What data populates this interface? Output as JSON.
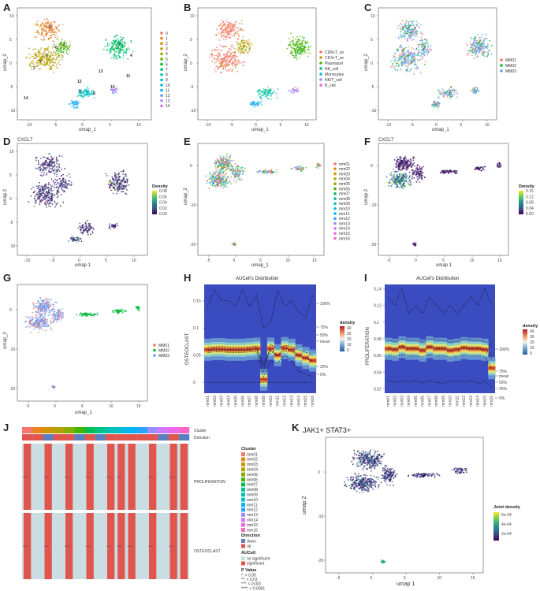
{
  "panels": {
    "A": {
      "letter": "A",
      "xlabel": "umap_1",
      "ylabel": "umap_2",
      "xticks": [
        "-10",
        "-5",
        "0",
        "5",
        "10"
      ],
      "yticks": [
        "10",
        "5",
        "0",
        "-5",
        "-10"
      ],
      "legend": [
        "0",
        "1",
        "2",
        "3",
        "4",
        "5",
        "6",
        "7",
        "8",
        "9",
        "10",
        "11",
        "12",
        "13",
        "14"
      ],
      "cluster_labels": [
        "0",
        "1",
        "2",
        "3",
        "4",
        "5",
        "6",
        "7",
        "8",
        "9",
        "10",
        "11",
        "12",
        "13",
        "14"
      ],
      "colors": [
        "#f8766d",
        "#e88526",
        "#d39200",
        "#b79f00",
        "#93aa00",
        "#5eb300",
        "#00ba38",
        "#00bf74",
        "#00c19f",
        "#00bfc4",
        "#00b9e3",
        "#00adfa",
        "#619cff",
        "#ae87ff",
        "#db72fb"
      ]
    },
    "B": {
      "letter": "B",
      "xlabel": "umap_1",
      "ylabel": "umap_2",
      "xticks": [
        "-10",
        "-5",
        "0",
        "5",
        "10"
      ],
      "yticks": [
        "10",
        "5",
        "0",
        "-5",
        "-10"
      ],
      "legend": [
        "CD8+T_ce",
        "CD4+T_ce",
        "Plasmacel",
        "NK_cell",
        "Monocytes",
        "NK/T_cell",
        "B_cell"
      ],
      "colors": [
        "#f8766d",
        "#c49a00",
        "#53b400",
        "#00c094",
        "#00b6eb",
        "#a58aff",
        "#fb61d7"
      ]
    },
    "C": {
      "letter": "C",
      "xlabel": "umap_1",
      "ylabel": "umap_2",
      "xticks": [
        "-10",
        "-5",
        "0",
        "5",
        "10"
      ],
      "yticks": [
        "10",
        "5",
        "0",
        "-5",
        "-10"
      ],
      "legend": [
        "MM01",
        "MM02",
        "MM03"
      ],
      "colors": [
        "#f8766d",
        "#00ba38",
        "#619cff"
      ]
    },
    "D": {
      "letter": "D",
      "subtitle": "CXCL7",
      "xlabel": "umap 1",
      "ylabel": "umap 2",
      "xticks": [
        "-10",
        "-5",
        "0",
        "5",
        "10"
      ],
      "yticks": [
        "10",
        "5",
        "0",
        "-5",
        "-10"
      ],
      "density_title": "Density",
      "density_ticks": [
        "0.08",
        "0.06",
        "0.04",
        "0.02",
        "0.00"
      ]
    },
    "E": {
      "letter": "E",
      "xlabel": "umap_1",
      "ylabel": "umap_2",
      "xticks": [
        "-5",
        "0",
        "5",
        "10",
        "15"
      ],
      "yticks": [
        "0",
        "-10",
        "-20"
      ],
      "legend": [
        "mm01",
        "mm02",
        "mm03",
        "mm04",
        "mm05",
        "mm06",
        "mm07",
        "mm08",
        "mm09",
        "mm10",
        "mm11",
        "mm12",
        "mm13",
        "mm14",
        "mm15",
        "mm16"
      ]
    },
    "F": {
      "letter": "F",
      "subtitle": "CXCL7",
      "xlabel": "umap 1",
      "ylabel": "umap 2",
      "xticks": [
        "-5",
        "0",
        "5",
        "10",
        "15"
      ],
      "yticks": [
        "0",
        "-10",
        "-20"
      ],
      "density_title": "Density",
      "density_ticks": [
        "0.15",
        "0.12",
        "0.08",
        "0.04",
        "0.00"
      ]
    },
    "G": {
      "letter": "G",
      "xlabel": "umap_1",
      "ylabel": "umap_2",
      "xticks": [
        "-5",
        "0",
        "5",
        "10",
        "15"
      ],
      "yticks": [
        "0",
        "-10",
        "-20"
      ],
      "legend": [
        "MM01",
        "MM02",
        "MM03"
      ]
    },
    "H": {
      "letter": "H",
      "title": "AUCell's Distribution",
      "ylabel": "OSTEOCLAST",
      "yticks": [
        "0.15",
        "0.1",
        "0.05",
        "0"
      ],
      "right_labels": [
        "100%",
        "75%",
        "50%",
        "mean",
        "25%",
        "0%"
      ],
      "density_title": "density",
      "density_ticks": [
        "40",
        "30",
        "20",
        "10",
        "0"
      ]
    },
    "I": {
      "letter": "I",
      "title": "AUCell's Distribution",
      "ylabel": "PROLIFERATION",
      "yticks": [
        "0.14",
        "0.12",
        "0.1",
        "0.08",
        "0.06",
        "0.04",
        "0.02"
      ],
      "right_labels": [
        "100%",
        "75%",
        "mean",
        "50%",
        "25%",
        "0%"
      ],
      "density_title": "density",
      "density_ticks": [
        "40",
        "30",
        "20",
        "10",
        "0"
      ]
    },
    "J": {
      "letter": "J",
      "row_labels": [
        "PROLIFERATION",
        "OSTEOCLAST"
      ],
      "top_labels": [
        "Cluster",
        "Direction"
      ],
      "legend_cluster_title": "Cluster",
      "legend_direction_title": "Direction",
      "legend_direction": [
        "down",
        "up"
      ],
      "legend_aucell_title": "AUCell",
      "legend_aucell": [
        "no significant",
        "significant"
      ],
      "legend_p_title": "P Value",
      "legend_p": [
        "*: < 0.05",
        "**: < 0.01",
        "***: < 0.001",
        "****: < 0.0001"
      ],
      "stars": "****"
    },
    "K": {
      "letter": "K",
      "title": "JAK1+ STAT3+",
      "xlabel": "umap 1",
      "ylabel": "umap 2",
      "xticks": [
        "-5",
        "0",
        "5",
        "10",
        "15"
      ],
      "yticks": [
        "0",
        "-10",
        "-20"
      ],
      "density_title": "Joint density",
      "density_ticks": [
        "6e-04",
        "4e-04",
        "2e-04"
      ]
    }
  },
  "samples": [
    "mm01",
    "mm02",
    "mm03",
    "mm04",
    "mm05",
    "mm06",
    "mm07",
    "mm08",
    "mm09",
    "mm10",
    "mm11",
    "mm12",
    "mm13",
    "mm14",
    "mm15",
    "mm16"
  ],
  "sample_colors": [
    "#f8766d",
    "#e7851e",
    "#d09400",
    "#b2a100",
    "#89ac00",
    "#45b500",
    "#00bc51",
    "#00c087",
    "#00c0b2",
    "#00bcd6",
    "#00b3f2",
    "#29a3ff",
    "#9c8dff",
    "#d277ff",
    "#f066ea",
    "#fc64c5"
  ],
  "chart_data": [
    {
      "type": "area",
      "title": "AUCell's Distribution",
      "ylabel": "OSTEOCLAST",
      "categories": [
        "mm01",
        "mm02",
        "mm03",
        "mm04",
        "mm05",
        "mm06",
        "mm07",
        "mm08",
        "mm09",
        "mm10",
        "mm11",
        "mm12",
        "mm13",
        "mm14",
        "mm15",
        "mm16"
      ],
      "ylim": [
        -0.02,
        0.18
      ],
      "series": [
        {
          "name": "100%",
          "values": [
            0.14,
            0.17,
            0.15,
            0.15,
            0.14,
            0.17,
            0.14,
            0.16,
            0.1,
            0.11,
            0.17,
            0.14,
            0.15,
            0.13,
            0.12,
            0.16
          ]
        },
        {
          "name": "75%",
          "values": [
            0.065,
            0.065,
            0.066,
            0.065,
            0.065,
            0.065,
            0.065,
            0.067,
            0.02,
            0.07,
            0.06,
            0.068,
            0.066,
            0.06,
            0.055,
            0.05
          ]
        },
        {
          "name": "50%",
          "values": [
            0.06,
            0.061,
            0.061,
            0.06,
            0.06,
            0.06,
            0.061,
            0.062,
            0.03,
            0.06,
            0.05,
            0.062,
            0.06,
            0.05,
            0.045,
            0.04
          ]
        },
        {
          "name": "mean",
          "values": [
            0.058,
            0.059,
            0.059,
            0.058,
            0.058,
            0.058,
            0.059,
            0.059,
            0.035,
            0.058,
            0.048,
            0.058,
            0.057,
            0.048,
            0.043,
            0.04
          ]
        },
        {
          "name": "25%",
          "values": [
            0.055,
            0.056,
            0.056,
            0.055,
            0.055,
            0.055,
            0.056,
            0.056,
            0.01,
            0.04,
            0.035,
            0.05,
            0.04,
            0.02,
            0.015,
            0.01
          ]
        },
        {
          "name": "0%",
          "values": [
            0,
            0,
            0,
            0,
            0,
            0,
            0,
            0,
            0,
            0,
            0,
            0,
            0,
            0,
            0,
            0
          ]
        }
      ],
      "density_peak": [
        0.06,
        0.061,
        0.061,
        0.06,
        0.06,
        0.06,
        0.061,
        0.062,
        0.005,
        0.062,
        0.05,
        0.063,
        0.06,
        0.05,
        0.045,
        0.04
      ]
    },
    {
      "type": "area",
      "title": "AUCell's Distribution",
      "ylabel": "PROLIFERATION",
      "categories": [
        "mm01",
        "mm02",
        "mm03",
        "mm04",
        "mm05",
        "mm06",
        "mm07",
        "mm08",
        "mm09",
        "mm10",
        "mm11",
        "mm12",
        "mm13",
        "mm14",
        "mm15",
        "mm16"
      ],
      "ylim": [
        0.015,
        0.145
      ],
      "series": [
        {
          "name": "100%",
          "values": [
            0.13,
            0.12,
            0.14,
            0.11,
            0.12,
            0.11,
            0.13,
            0.12,
            0.11,
            0.12,
            0.11,
            0.12,
            0.13,
            0.12,
            0.14,
            0.12
          ]
        },
        {
          "name": "75%",
          "values": [
            0.078,
            0.077,
            0.08,
            0.079,
            0.078,
            0.076,
            0.08,
            0.079,
            0.078,
            0.076,
            0.077,
            0.08,
            0.079,
            0.078,
            0.077,
            0.07
          ]
        },
        {
          "name": "mean",
          "values": [
            0.07,
            0.069,
            0.072,
            0.07,
            0.07,
            0.068,
            0.072,
            0.07,
            0.07,
            0.068,
            0.069,
            0.071,
            0.07,
            0.07,
            0.069,
            0.06
          ]
        },
        {
          "name": "50%",
          "values": [
            0.068,
            0.067,
            0.07,
            0.068,
            0.068,
            0.066,
            0.07,
            0.068,
            0.068,
            0.066,
            0.067,
            0.069,
            0.068,
            0.068,
            0.067,
            0.055
          ]
        },
        {
          "name": "25%",
          "values": [
            0.06,
            0.059,
            0.062,
            0.06,
            0.06,
            0.058,
            0.062,
            0.06,
            0.06,
            0.058,
            0.059,
            0.061,
            0.06,
            0.06,
            0.059,
            0.045
          ]
        },
        {
          "name": "0%",
          "values": [
            0.03,
            0.028,
            0.03,
            0.028,
            0.03,
            0.027,
            0.03,
            0.028,
            0.027,
            0.029,
            0.03,
            0.028,
            0.03,
            0.027,
            0.029,
            0.022
          ]
        }
      ],
      "density_peak": [
        0.068,
        0.067,
        0.07,
        0.068,
        0.068,
        0.066,
        0.07,
        0.068,
        0.068,
        0.066,
        0.067,
        0.069,
        0.068,
        0.068,
        0.067,
        0.045
      ]
    }
  ],
  "heatmap_j": {
    "direction": [
      "up",
      "up",
      "down",
      "up",
      "up",
      "down",
      "up",
      "down",
      "up",
      "up",
      "up",
      "up",
      "up",
      "down",
      "up",
      "down"
    ],
    "prolif_sig": [
      true,
      false,
      true,
      false,
      true,
      false,
      true,
      false,
      true,
      true,
      true,
      false,
      true,
      false,
      true,
      true
    ],
    "osteo_sig": [
      true,
      false,
      true,
      false,
      true,
      false,
      true,
      false,
      true,
      true,
      true,
      false,
      true,
      false,
      true,
      true
    ],
    "prolif_star_cols": [
      0,
      2,
      4,
      6,
      8,
      9,
      12,
      14
    ],
    "osteo_star_cols": [
      0,
      2,
      4,
      6,
      8,
      9,
      10,
      12,
      14
    ]
  }
}
